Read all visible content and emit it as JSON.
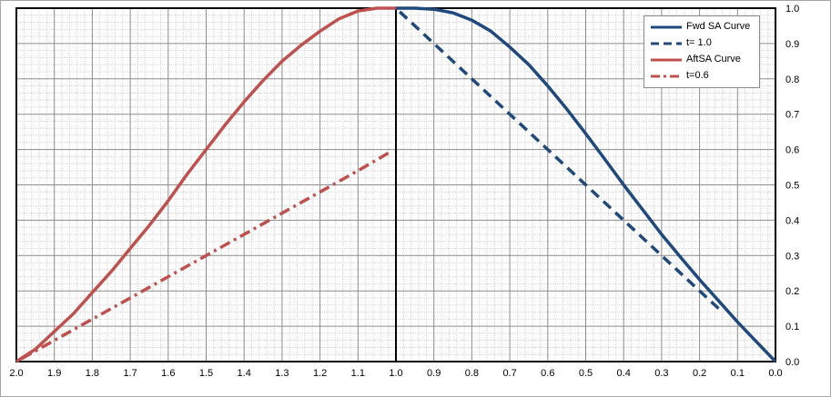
{
  "chart_data": {
    "type": "line",
    "title": "",
    "xlabel": "",
    "ylabel": "",
    "x_axis": {
      "min": 0.0,
      "max": 2.0,
      "reversed": true,
      "major_step": 0.1,
      "tick_labels": [
        "2.0",
        "1.9",
        "1.8",
        "1.7",
        "1.6",
        "1.5",
        "1.4",
        "1.3",
        "1.2",
        "1.1",
        "1.0",
        "0.9",
        "0.8",
        "0.7",
        "0.6",
        "0.5",
        "0.4",
        "0.3",
        "0.2",
        "0.1",
        "0.0"
      ]
    },
    "y_axis": {
      "min": 0.0,
      "max": 1.0,
      "position": "right",
      "major_step": 0.1,
      "tick_labels": [
        "1.0",
        "0.9",
        "0.8",
        "0.7",
        "0.6",
        "0.5",
        "0.4",
        "0.3",
        "0.2",
        "0.1",
        "0.0"
      ]
    },
    "grid": {
      "major": true,
      "minor": true
    },
    "center_line_x": 1.0,
    "legend_position": "top-right",
    "series": [
      {
        "name": "Fwd SA Curve",
        "color": "#1f497d",
        "dash": "solid",
        "x": [
          0.0,
          0.05,
          0.1,
          0.15,
          0.2,
          0.25,
          0.3,
          0.35,
          0.4,
          0.45,
          0.5,
          0.55,
          0.6,
          0.65,
          0.7,
          0.75,
          0.8,
          0.85,
          0.9,
          0.95,
          1.0
        ],
        "y": [
          0.0,
          0.056,
          0.112,
          0.172,
          0.232,
          0.295,
          0.36,
          0.43,
          0.5,
          0.573,
          0.645,
          0.715,
          0.78,
          0.84,
          0.89,
          0.935,
          0.966,
          0.987,
          0.997,
          1.0,
          1.0
        ]
      },
      {
        "name": "t= 1.0",
        "color": "#1f497d",
        "dash": "dash",
        "x": [
          0.15,
          0.2,
          0.3,
          0.4,
          0.5,
          0.6,
          0.7,
          0.8,
          0.9,
          1.0
        ],
        "y": [
          0.15,
          0.2,
          0.3,
          0.4,
          0.5,
          0.6,
          0.7,
          0.8,
          0.9,
          1.0
        ]
      },
      {
        "name": "AftSA Curve",
        "color": "#c0504d",
        "dash": "solid",
        "x": [
          1.0,
          1.05,
          1.1,
          1.15,
          1.2,
          1.25,
          1.3,
          1.35,
          1.4,
          1.45,
          1.5,
          1.55,
          1.6,
          1.65,
          1.7,
          1.75,
          1.8,
          1.85,
          1.9,
          1.95,
          2.0
        ],
        "y": [
          1.0,
          1.0,
          0.992,
          0.97,
          0.935,
          0.895,
          0.85,
          0.795,
          0.735,
          0.67,
          0.6,
          0.53,
          0.455,
          0.385,
          0.32,
          0.255,
          0.195,
          0.135,
          0.085,
          0.035,
          0.0
        ]
      },
      {
        "name": "t=0.6",
        "color": "#c0504d",
        "dash": "dashdot",
        "x": [
          1.02,
          1.1,
          1.2,
          1.3,
          1.4,
          1.5,
          1.6,
          1.7,
          1.8,
          1.9,
          2.0
        ],
        "y": [
          0.59,
          0.54,
          0.48,
          0.42,
          0.36,
          0.3,
          0.24,
          0.18,
          0.12,
          0.06,
          0.0
        ]
      }
    ]
  }
}
